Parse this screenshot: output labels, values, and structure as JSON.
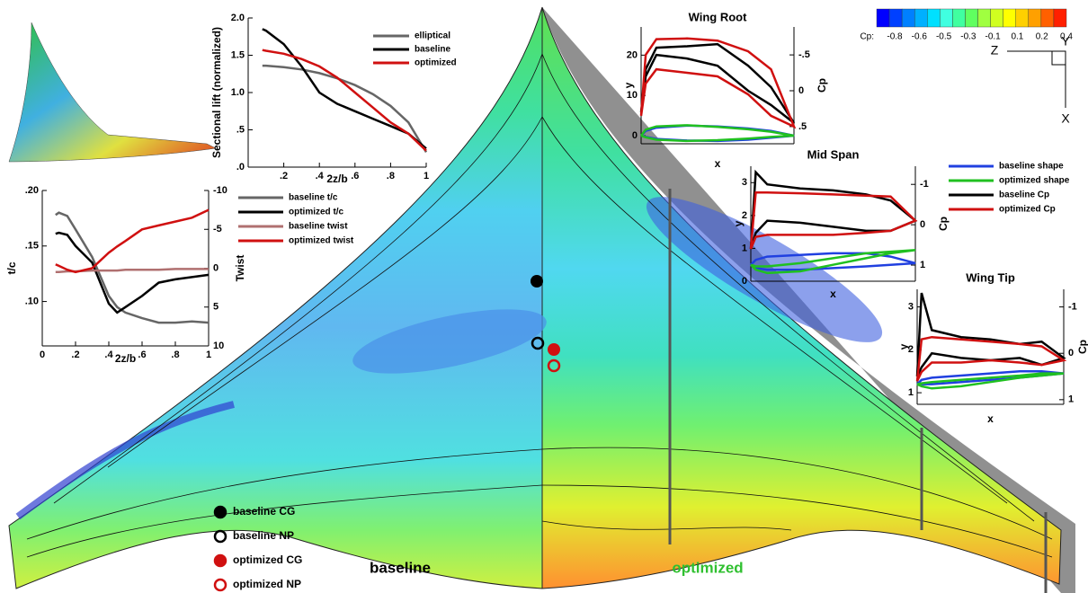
{
  "chart_data": [
    {
      "type": "line",
      "xlabel": "2z/b",
      "ylabel": "Sectional lift (normalized)",
      "x": [
        0.08,
        0.1,
        0.2,
        0.3,
        0.4,
        0.5,
        0.6,
        0.7,
        0.8,
        0.9,
        1
      ],
      "series": [
        {
          "name": "elliptical",
          "color": "#666666",
          "values": [
            1.36,
            1.36,
            1.34,
            1.31,
            1.26,
            1.19,
            1.1,
            0.98,
            0.82,
            0.6,
            0.2
          ]
        },
        {
          "name": "baseline",
          "color": "#000000",
          "values": [
            1.85,
            1.83,
            1.65,
            1.35,
            1.0,
            0.85,
            0.75,
            0.65,
            0.55,
            0.45,
            0.25
          ]
        },
        {
          "name": "optimized",
          "color": "#d01010",
          "values": [
            1.57,
            1.56,
            1.52,
            1.45,
            1.35,
            1.2,
            1.0,
            0.8,
            0.6,
            0.45,
            0.22
          ]
        }
      ],
      "xlim": [
        0,
        1
      ],
      "xticks": [
        {
          "value": 0.2,
          "label": ".2"
        },
        {
          "value": 0.4,
          "label": ".4"
        },
        {
          "value": 0.6,
          "label": ".6"
        },
        {
          "value": 0.8,
          "label": ".8"
        },
        1
      ],
      "ylim": [
        0,
        2
      ],
      "yticks": [
        {
          "value": 0,
          "label": ".0"
        },
        {
          "value": 0.5,
          "label": ".5"
        },
        {
          "value": 1,
          "label": "1.0"
        },
        {
          "value": 1.5,
          "label": "1.5"
        },
        {
          "value": 2,
          "label": "2.0"
        }
      ]
    },
    {
      "type": "line",
      "xlabel": "2z/b",
      "ylabel": "t/c",
      "y2label": "Twist",
      "x": [
        0.08,
        0.1,
        0.15,
        0.2,
        0.3,
        0.4,
        0.45,
        0.5,
        0.6,
        0.7,
        0.8,
        0.9,
        1
      ],
      "series": [
        {
          "name": "baseline t/c",
          "color": "#666666",
          "values": [
            0.178,
            0.18,
            0.177,
            0.165,
            0.14,
            0.105,
            0.095,
            0.09,
            0.085,
            0.081,
            0.081,
            0.082,
            0.081
          ]
        },
        {
          "name": "optimized t/c",
          "color": "#000000",
          "values": [
            0.161,
            0.162,
            0.16,
            0.15,
            0.135,
            0.098,
            0.09,
            0.095,
            0.105,
            0.117,
            0.12,
            0.122,
            0.124
          ]
        },
        {
          "name": "baseline twist",
          "color": "#b07070",
          "axis": "y2",
          "values": [
            0.5,
            0.5,
            0.4,
            0.4,
            0.3,
            0.3,
            0.3,
            0.2,
            0.2,
            0.2,
            0.1,
            0.1,
            0.1
          ]
        },
        {
          "name": "optimized twist",
          "color": "#d01010",
          "axis": "y2",
          "values": [
            -0.5,
            -0.3,
            0.2,
            0.5,
            0,
            -2,
            -2.8,
            -3.5,
            -5,
            -5.5,
            -6,
            -6.5,
            -7.5
          ]
        }
      ],
      "xlim": [
        0,
        1
      ],
      "xticks": [
        0,
        {
          "value": 0.2,
          "label": ".2"
        },
        {
          "value": 0.4,
          "label": ".4"
        },
        {
          "value": 0.6,
          "label": ".6"
        },
        {
          "value": 0.8,
          "label": ".8"
        },
        1
      ],
      "ylim": [
        0.06,
        0.2
      ],
      "yticks": [
        {
          "value": 0.1,
          "label": ".10"
        },
        {
          "value": 0.15,
          "label": ".15"
        },
        {
          "value": 0.2,
          "label": ".20"
        }
      ],
      "y2lim": [
        10,
        -10
      ],
      "y2ticks": [
        -10,
        -5,
        0,
        5,
        10
      ]
    },
    {
      "type": "line",
      "title": "Wing Root",
      "xlabel": "x",
      "ylabel": "y",
      "y2label": "Cp",
      "x": [
        0,
        0.03,
        0.1,
        0.3,
        0.5,
        0.7,
        0.85,
        1,
        0.85,
        0.7,
        0.5,
        0.3,
        0.1,
        0.03,
        0
      ],
      "series": [
        {
          "color": "#2040e0",
          "values": [
            0,
            1.2,
            2,
            2.5,
            2.3,
            1.8,
            1.2,
            0,
            -0.5,
            -1,
            -1.3,
            -1.2,
            -0.8,
            -0.3,
            0
          ]
        },
        {
          "color": "#20c020",
          "values": [
            0,
            1.5,
            2.3,
            2.6,
            2.2,
            1.6,
            1.0,
            0,
            -0.3,
            -0.7,
            -1.1,
            -1.3,
            -1.0,
            -0.4,
            0
          ]
        },
        {
          "color": "#000000",
          "axis": "y2",
          "values": [
            0.3,
            -0.3,
            -0.6,
            -0.62,
            -0.65,
            -0.35,
            -0.05,
            0.45,
            0.2,
            0.0,
            -0.35,
            -0.45,
            -0.5,
            -0.2,
            0.3
          ]
        },
        {
          "color": "#d01010",
          "axis": "y2",
          "values": [
            0.35,
            -0.5,
            -0.72,
            -0.73,
            -0.7,
            -0.55,
            -0.3,
            0.5,
            0.35,
            0.05,
            -0.2,
            -0.25,
            -0.3,
            -0.1,
            0.35
          ]
        }
      ],
      "xlim": [
        0,
        1
      ],
      "ylim": [
        -2,
        27
      ],
      "yticks": [
        0,
        10,
        20
      ],
      "y2lim": [
        0.74,
        -0.89
      ],
      "y2ticks": [
        {
          "value": -0.5,
          "label": "-.5"
        },
        0,
        {
          "value": 0.5,
          "label": ".5"
        }
      ]
    },
    {
      "type": "line",
      "title": "Mid Span",
      "xlabel": "x",
      "ylabel": "y",
      "y2label": "Cp",
      "x": [
        0,
        0.03,
        0.1,
        0.3,
        0.5,
        0.7,
        0.85,
        1,
        0.85,
        0.7,
        0.5,
        0.3,
        0.1,
        0.03,
        0
      ],
      "series": [
        {
          "name": "baseline shape",
          "color": "#2040e0",
          "values": [
            0.5,
            0.65,
            0.75,
            0.8,
            0.85,
            0.85,
            0.75,
            0.55,
            0.5,
            0.45,
            0.4,
            0.35,
            0.35,
            0.4,
            0.5
          ]
        },
        {
          "name": "optimized shape",
          "color": "#20c020",
          "values": [
            0.5,
            0.45,
            0.45,
            0.55,
            0.7,
            0.85,
            0.9,
            0.95,
            0.85,
            0.7,
            0.5,
            0.3,
            0.25,
            0.35,
            0.5
          ]
        },
        {
          "name": "baseline Cp",
          "color": "#000000",
          "axis": "y2",
          "values": [
            0.6,
            -1.3,
            -1.0,
            -0.9,
            -0.85,
            -0.75,
            -0.6,
            -0.1,
            0.15,
            0.15,
            0.05,
            -0.05,
            -0.1,
            0.2,
            0.6
          ]
        },
        {
          "name": "optimized Cp",
          "color": "#d01010",
          "axis": "y2",
          "values": [
            0.6,
            -0.8,
            -0.8,
            -0.78,
            -0.75,
            -0.72,
            -0.7,
            -0.1,
            0.15,
            0.2,
            0.25,
            0.25,
            0.25,
            0.3,
            0.6
          ]
        }
      ],
      "xlim": [
        0,
        1
      ],
      "ylim": [
        0,
        3.5
      ],
      "yticks": [
        0,
        1,
        2,
        3
      ],
      "y2lim": [
        1.4,
        -1.45
      ],
      "y2ticks": [
        -1,
        0,
        1
      ]
    },
    {
      "type": "line",
      "title": "Wing Tip",
      "xlabel": "x",
      "ylabel": "y",
      "y2label": "Cp",
      "x": [
        0,
        0.03,
        0.1,
        0.3,
        0.5,
        0.7,
        0.85,
        1,
        0.85,
        0.7,
        0.5,
        0.3,
        0.1,
        0.03,
        0
      ],
      "series": [
        {
          "color": "#2040e0",
          "values": [
            1.2,
            1.3,
            1.35,
            1.4,
            1.45,
            1.5,
            1.5,
            1.45,
            1.4,
            1.35,
            1.3,
            1.25,
            1.2,
            1.2,
            1.2
          ]
        },
        {
          "color": "#20c020",
          "values": [
            1.2,
            1.15,
            1.1,
            1.15,
            1.25,
            1.35,
            1.4,
            1.45,
            1.45,
            1.4,
            1.35,
            1.3,
            1.25,
            1.22,
            1.2
          ]
        },
        {
          "color": "#000000",
          "axis": "y2",
          "values": [
            0.5,
            -1.3,
            -0.5,
            -0.35,
            -0.3,
            -0.2,
            -0.25,
            0.1,
            0.25,
            0.1,
            0.15,
            0.1,
            0.0,
            0.3,
            0.5
          ]
        },
        {
          "color": "#d01010",
          "axis": "y2",
          "values": [
            0.6,
            -0.3,
            -0.35,
            -0.3,
            -0.25,
            -0.2,
            -0.15,
            0.15,
            0.25,
            0.2,
            0.15,
            0.2,
            0.2,
            0.4,
            0.6
          ]
        }
      ],
      "xlim": [
        0,
        1
      ],
      "ylim": [
        0.73,
        3.41
      ],
      "yticks": [
        1,
        2,
        3
      ],
      "y2lim": [
        1.1,
        -1.38
      ],
      "y2ticks": [
        -1,
        0,
        1
      ]
    }
  ],
  "colorbar": {
    "title": "Cp:",
    "ticks": [
      -0.8,
      -0.6,
      -0.5,
      -0.3,
      -0.1,
      0.1,
      0.2,
      0.4
    ],
    "colors": [
      "#0000ff",
      "#0040ff",
      "#0080ff",
      "#00b0ff",
      "#00e0ff",
      "#40ffe0",
      "#40ffa0",
      "#60ff60",
      "#a0ff40",
      "#d0ff20",
      "#ffff00",
      "#ffd000",
      "#ffa000",
      "#ff6000",
      "#ff2000"
    ]
  },
  "wing": {
    "labels": [
      "baseline",
      "optimized"
    ],
    "markers": [
      "baseline CG",
      "baseline NP",
      "optimized CG",
      "optimized NP"
    ]
  },
  "triad": [
    "Z",
    "Y",
    "X"
  ]
}
